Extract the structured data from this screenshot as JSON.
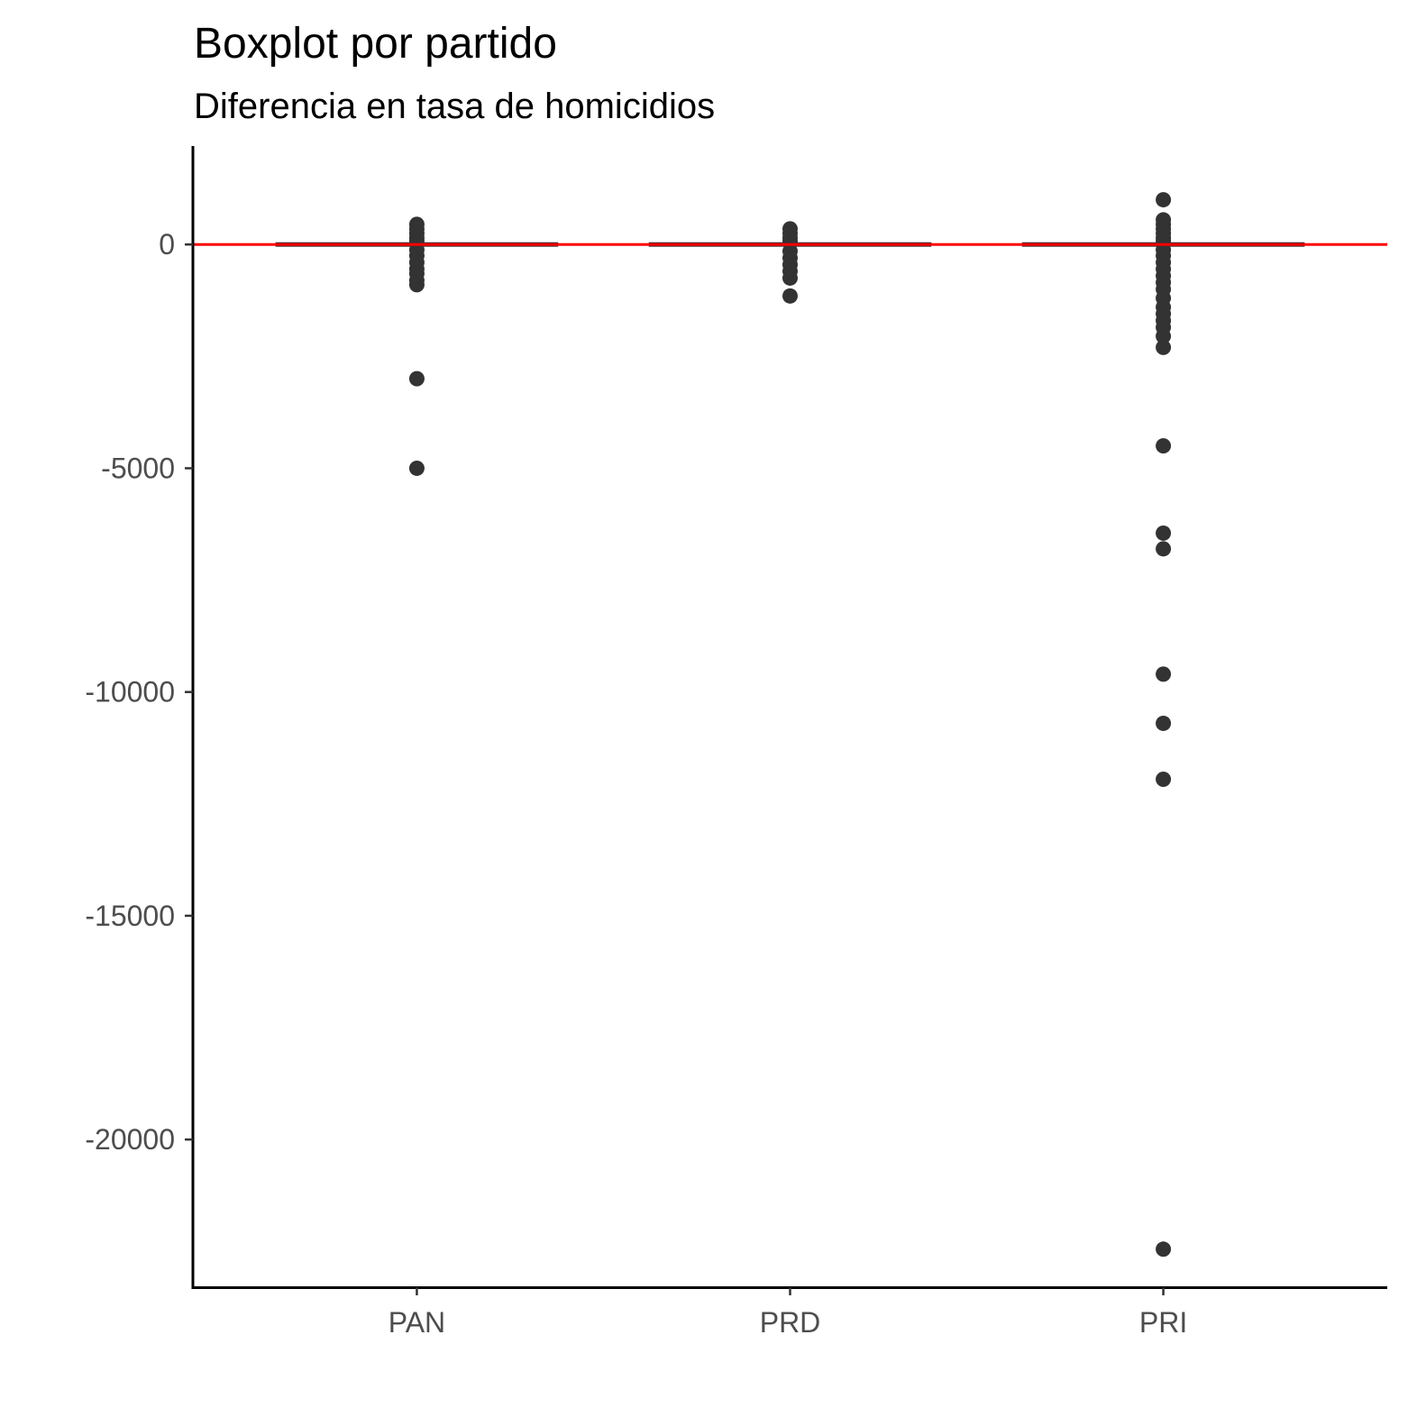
{
  "chart_data": {
    "type": "boxplot",
    "title": "Boxplot por partido",
    "subtitle": "Diferencia en tasa de homicidios",
    "xlabel": "",
    "ylabel": "",
    "categories": [
      "PAN",
      "PRD",
      "PRI"
    ],
    "y_ticks": [
      0,
      -5000,
      -10000,
      -15000,
      -20000
    ],
    "y_tick_labels": [
      "0",
      "-5000",
      "-10000",
      "-15000",
      "-20000"
    ],
    "ylim": [
      -23300,
      2200
    ],
    "grid": false,
    "legend": "none",
    "reference_line": {
      "y": 0,
      "color": "#ff0000"
    },
    "colors": {
      "box": "#333333",
      "outlier": "#333333",
      "axis": "#000000",
      "reference": "#ff0000"
    },
    "boxes": [
      {
        "category": "PAN",
        "q1": -20,
        "median": 0,
        "q3": 20,
        "whisker_low": -60,
        "whisker_high": 60,
        "outliers": [
          450,
          350,
          250,
          150,
          80,
          -120,
          -250,
          -400,
          -550,
          -650,
          -800,
          -900,
          -3000,
          -5000
        ]
      },
      {
        "category": "PRD",
        "q1": -20,
        "median": 0,
        "q3": 20,
        "whisker_low": -60,
        "whisker_high": 60,
        "outliers": [
          350,
          250,
          150,
          80,
          -150,
          -300,
          -450,
          -600,
          -750,
          -1150
        ]
      },
      {
        "category": "PRI",
        "q1": -20,
        "median": 0,
        "q3": 20,
        "whisker_low": -60,
        "whisker_high": 60,
        "outliers": [
          1000,
          550,
          450,
          350,
          250,
          150,
          80,
          -120,
          -250,
          -400,
          -550,
          -700,
          -850,
          -1000,
          -1200,
          -1400,
          -1550,
          -1700,
          -1850,
          -2050,
          -2300,
          -4500,
          -6450,
          -6800,
          -9600,
          -10700,
          -11950,
          -22450
        ]
      }
    ]
  }
}
